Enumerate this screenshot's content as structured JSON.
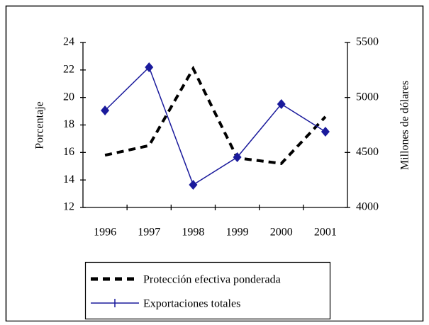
{
  "chart_data": {
    "type": "line",
    "categories": [
      "1996",
      "1997",
      "1998",
      "1999",
      "2000",
      "2001"
    ],
    "series": [
      {
        "name": "Protección efectiva ponderada",
        "color": "#000000",
        "values": [
          15.8,
          16.5,
          22.1,
          15.6,
          15.2,
          18.6
        ]
      },
      {
        "name": "Exportaciones totales",
        "color": "#1a1a9c",
        "axis": "y2",
        "values": [
          4882,
          5275,
          4206,
          4457,
          4940,
          4689
        ]
      }
    ],
    "ylabel": "Porcentaje",
    "y2label": "Millones de dólares",
    "ylim": [
      12,
      24
    ],
    "yticks": [
      12,
      14,
      16,
      18,
      20,
      22,
      24
    ],
    "y2lim": [
      4000,
      5500
    ],
    "y2ticks": [
      4000,
      4500,
      5000,
      5500
    ],
    "grid": false,
    "legend": "bottom"
  }
}
